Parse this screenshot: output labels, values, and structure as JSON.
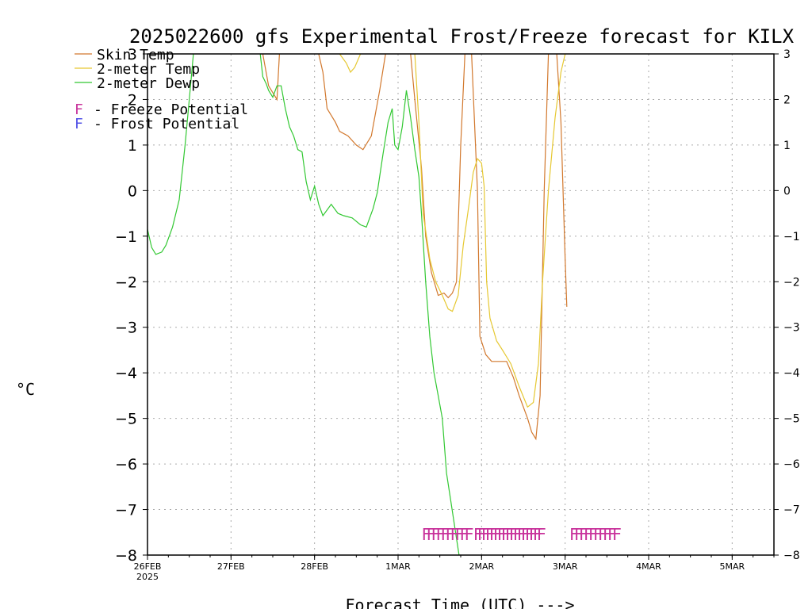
{
  "chart_data": {
    "type": "line",
    "title": "2025022600 gfs Experimental Frost/Freeze forecast for KILX",
    "xlabel": "Forecast Time (UTC) --->",
    "ylabel": "°C",
    "ylim": [
      -8,
      3
    ],
    "yticks": [
      3,
      2,
      1,
      0,
      -1,
      -2,
      -3,
      -4,
      -5,
      -6,
      -7,
      -8
    ],
    "ytick_labels": [
      "3",
      "2",
      "1",
      "0",
      "−1",
      "−2",
      "−3",
      "−4",
      "−5",
      "−6",
      "−7",
      "−8"
    ],
    "x_unit": "days since 26FEB 00Z",
    "xlim": [
      0,
      7.5
    ],
    "xticks": [
      {
        "x": 0,
        "label": "26FEB",
        "sub": "2025"
      },
      {
        "x": 1,
        "label": "27FEB",
        "sub": ""
      },
      {
        "x": 2,
        "label": "28FEB",
        "sub": ""
      },
      {
        "x": 3,
        "label": "1MAR",
        "sub": ""
      },
      {
        "x": 4,
        "label": "2MAR",
        "sub": ""
      },
      {
        "x": 5,
        "label": "3MAR",
        "sub": ""
      },
      {
        "x": 6,
        "label": "4MAR",
        "sub": ""
      },
      {
        "x": 7,
        "label": "5MAR",
        "sub": ""
      }
    ],
    "grid": true,
    "legend": {
      "position": "top-left",
      "series_entries": [
        "Skin Temp",
        "2-meter Temp",
        "2-meter Dewp"
      ],
      "marker_entries": [
        {
          "glyph": "F",
          "text": "- Freeze Potential",
          "color": "#c8329b"
        },
        {
          "glyph": "F",
          "text": "- Frost Potential",
          "color": "#5050e6"
        }
      ]
    },
    "series": [
      {
        "name": "Skin Temp",
        "color": "#d2782d",
        "segments": [
          [
            [
              1.38,
              3.0
            ],
            [
              1.45,
              2.3
            ],
            [
              1.55,
              2.0
            ],
            [
              1.58,
              3.0
            ]
          ],
          [
            [
              2.05,
              3.0
            ],
            [
              2.1,
              2.6
            ],
            [
              2.15,
              1.8
            ],
            [
              2.25,
              1.5
            ],
            [
              2.3,
              1.3
            ],
            [
              2.4,
              1.2
            ],
            [
              2.5,
              1.0
            ],
            [
              2.58,
              0.9
            ],
            [
              2.68,
              1.2
            ],
            [
              2.78,
              2.2
            ],
            [
              2.85,
              3.0
            ]
          ],
          [
            [
              3.15,
              3.0
            ],
            [
              3.2,
              2.0
            ],
            [
              3.28,
              0.5
            ],
            [
              3.33,
              -1.0
            ],
            [
              3.4,
              -1.8
            ],
            [
              3.48,
              -2.3
            ],
            [
              3.55,
              -2.25
            ],
            [
              3.6,
              -2.35
            ],
            [
              3.65,
              -2.25
            ],
            [
              3.7,
              -2.0
            ],
            [
              3.75,
              1.0
            ],
            [
              3.8,
              3.0
            ]
          ],
          [
            [
              3.88,
              3.0
            ],
            [
              3.95,
              0.0
            ],
            [
              3.98,
              -3.2
            ],
            [
              4.05,
              -3.6
            ],
            [
              4.12,
              -3.75
            ],
            [
              4.2,
              -3.75
            ],
            [
              4.3,
              -3.75
            ],
            [
              4.38,
              -4.1
            ],
            [
              4.45,
              -4.5
            ],
            [
              4.55,
              -5.0
            ],
            [
              4.6,
              -5.3
            ],
            [
              4.65,
              -5.45
            ],
            [
              4.7,
              -4.5
            ],
            [
              4.75,
              0.0
            ],
            [
              4.8,
              3.0
            ]
          ],
          [
            [
              4.9,
              3.0
            ],
            [
              4.95,
              1.5
            ],
            [
              5.0,
              -1.5
            ],
            [
              5.02,
              -2.55
            ]
          ]
        ]
      },
      {
        "name": "2-meter Temp",
        "color": "#e6c832",
        "segments": [
          [
            [
              2.3,
              3.0
            ],
            [
              2.38,
              2.8
            ],
            [
              2.43,
              2.6
            ],
            [
              2.48,
              2.7
            ],
            [
              2.55,
              3.0
            ]
          ],
          [
            [
              3.2,
              3.0
            ],
            [
              3.25,
              1.5
            ],
            [
              3.3,
              -0.5
            ],
            [
              3.38,
              -1.5
            ],
            [
              3.45,
              -2.0
            ],
            [
              3.53,
              -2.3
            ],
            [
              3.6,
              -2.6
            ],
            [
              3.65,
              -2.65
            ],
            [
              3.72,
              -2.3
            ],
            [
              3.78,
              -1.2
            ],
            [
              3.85,
              -0.3
            ],
            [
              3.9,
              0.4
            ],
            [
              3.95,
              0.7
            ],
            [
              4.0,
              0.6
            ],
            [
              4.03,
              0.1
            ],
            [
              4.06,
              -2.0
            ],
            [
              4.1,
              -2.8
            ],
            [
              4.18,
              -3.3
            ],
            [
              4.25,
              -3.5
            ],
            [
              4.35,
              -3.8
            ],
            [
              4.45,
              -4.3
            ],
            [
              4.55,
              -4.75
            ],
            [
              4.62,
              -4.65
            ],
            [
              4.68,
              -3.8
            ],
            [
              4.73,
              -2.0
            ],
            [
              4.8,
              0.0
            ],
            [
              4.88,
              1.6
            ],
            [
              4.95,
              2.6
            ],
            [
              5.0,
              3.0
            ]
          ]
        ]
      },
      {
        "name": "2-meter Dewp",
        "color": "#32c832",
        "segments": [
          [
            [
              0.0,
              -0.85
            ],
            [
              0.05,
              -1.25
            ],
            [
              0.1,
              -1.4
            ],
            [
              0.17,
              -1.35
            ],
            [
              0.22,
              -1.2
            ],
            [
              0.3,
              -0.8
            ],
            [
              0.38,
              -0.2
            ],
            [
              0.45,
              1.0
            ],
            [
              0.5,
              2.0
            ],
            [
              0.55,
              3.0
            ]
          ],
          [
            [
              1.35,
              3.0
            ],
            [
              1.38,
              2.5
            ],
            [
              1.42,
              2.35
            ],
            [
              1.45,
              2.2
            ],
            [
              1.5,
              2.05
            ],
            [
              1.55,
              2.3
            ],
            [
              1.6,
              2.3
            ],
            [
              1.65,
              1.8
            ],
            [
              1.7,
              1.4
            ],
            [
              1.75,
              1.2
            ],
            [
              1.8,
              0.9
            ],
            [
              1.85,
              0.85
            ],
            [
              1.9,
              0.2
            ],
            [
              1.95,
              -0.2
            ],
            [
              2.0,
              0.1
            ],
            [
              2.05,
              -0.3
            ],
            [
              2.1,
              -0.55
            ],
            [
              2.2,
              -0.3
            ],
            [
              2.28,
              -0.5
            ],
            [
              2.35,
              -0.55
            ],
            [
              2.45,
              -0.6
            ],
            [
              2.55,
              -0.75
            ],
            [
              2.62,
              -0.8
            ],
            [
              2.7,
              -0.4
            ],
            [
              2.75,
              -0.05
            ],
            [
              2.82,
              0.8
            ],
            [
              2.88,
              1.5
            ],
            [
              2.93,
              1.8
            ],
            [
              2.96,
              1.0
            ],
            [
              3.0,
              0.9
            ],
            [
              3.05,
              1.4
            ],
            [
              3.1,
              2.2
            ],
            [
              3.15,
              1.6
            ],
            [
              3.2,
              0.9
            ],
            [
              3.25,
              0.3
            ],
            [
              3.28,
              -0.5
            ],
            [
              3.33,
              -2.0
            ],
            [
              3.38,
              -3.2
            ],
            [
              3.43,
              -4.0
            ],
            [
              3.48,
              -4.5
            ],
            [
              3.53,
              -5.0
            ],
            [
              3.58,
              -6.2
            ],
            [
              3.63,
              -6.8
            ],
            [
              3.68,
              -7.4
            ],
            [
              3.73,
              -8.0
            ]
          ]
        ]
      }
    ],
    "markers": [
      {
        "glyph": "F",
        "type": "Freeze Potential",
        "color": "#c8329b",
        "x_range": [
          3.28,
          3.8
        ],
        "y": -7.55
      },
      {
        "glyph": "F",
        "type": "Freeze Potential",
        "color": "#c8329b",
        "x_range": [
          3.9,
          4.66
        ],
        "y": -7.55
      },
      {
        "glyph": "F",
        "type": "Freeze Potential",
        "color": "#c8329b",
        "x_range": [
          5.05,
          5.6
        ],
        "y": -7.55
      }
    ]
  }
}
